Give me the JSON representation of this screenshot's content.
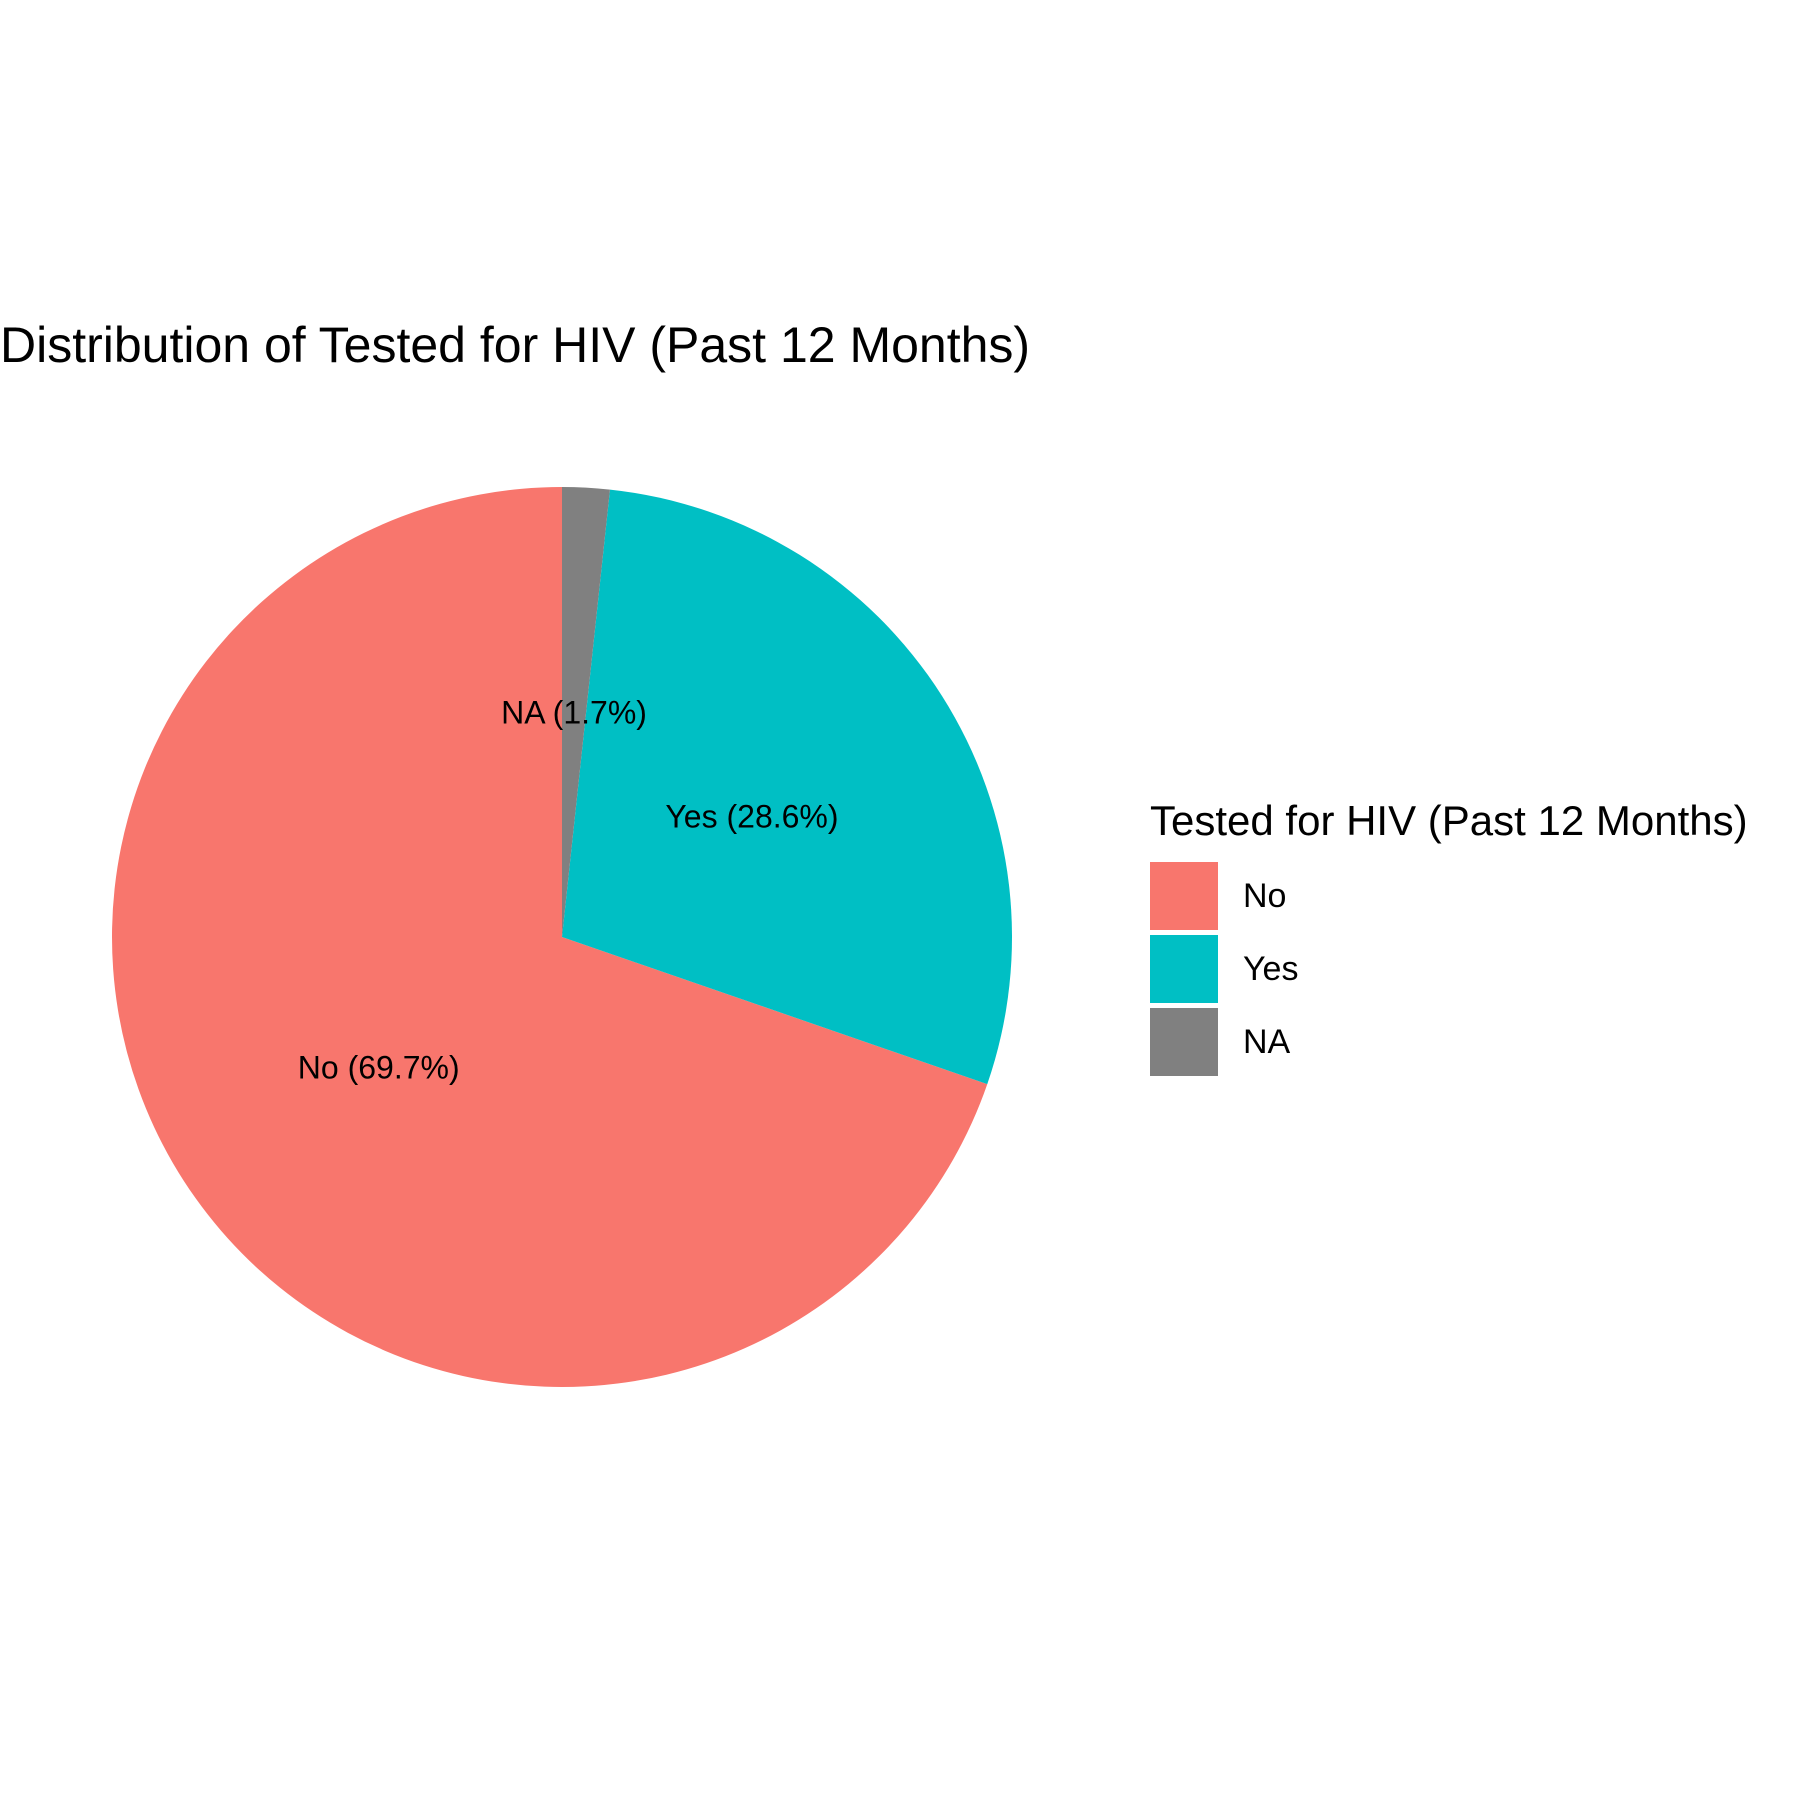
{
  "chart_data": {
    "type": "pie",
    "title": "Distribution of Tested for HIV (Past 12 Months)",
    "legend_title": "Tested for HIV (Past 12 Months)",
    "legend_position": "right",
    "start_angle_deg": 0,
    "direction": "counterclockwise",
    "slices": [
      {
        "name": "No",
        "value": 69.7,
        "label": "No (69.7%)",
        "color": "#F8766D"
      },
      {
        "name": "Yes",
        "value": 28.6,
        "label": "Yes (28.6%)",
        "color": "#00BFC4"
      },
      {
        "name": "NA",
        "value": 1.7,
        "label": "NA (1.7%)",
        "color": "#808080"
      }
    ]
  }
}
